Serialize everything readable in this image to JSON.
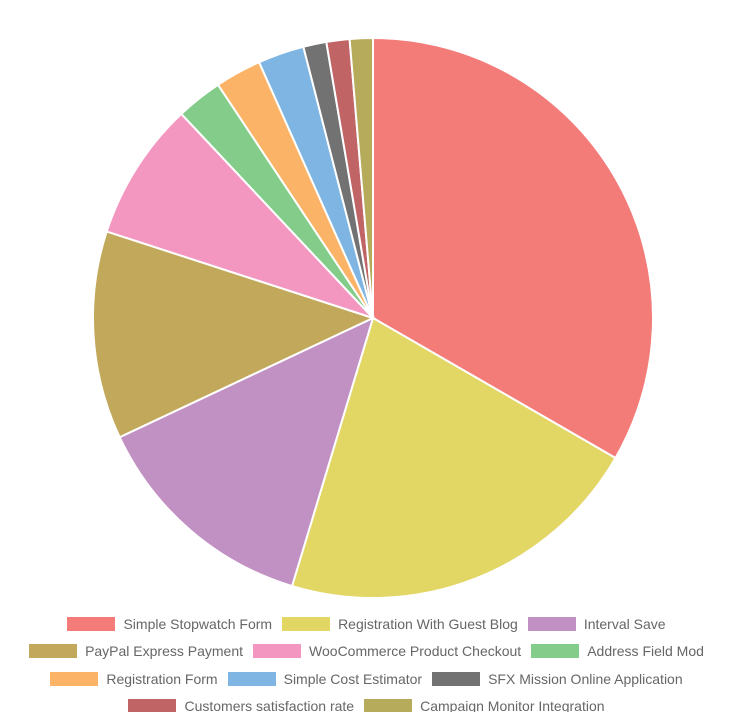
{
  "chart_data": {
    "type": "pie",
    "categories": [
      "Simple Stopwatch Form",
      "Registration With Guest Blog",
      "Interval Save",
      "PayPal Express Payment",
      "WooCommerce Product Checkout",
      "Address Field Mod",
      "Registration Form",
      "Simple Cost Estimator",
      "SFX Mission Online Application",
      "Customers satisfaction rate",
      "Campaign Monitor Integration"
    ],
    "values": [
      25,
      16,
      10,
      9,
      6,
      2,
      2,
      2,
      1,
      1,
      1
    ],
    "colors": [
      "#f37b78",
      "#e2d664",
      "#c191c3",
      "#c2a85a",
      "#f397c1",
      "#84cc8a",
      "#fbb467",
      "#7eb5e2",
      "#727272",
      "#c06466",
      "#b6ab5a"
    ]
  }
}
